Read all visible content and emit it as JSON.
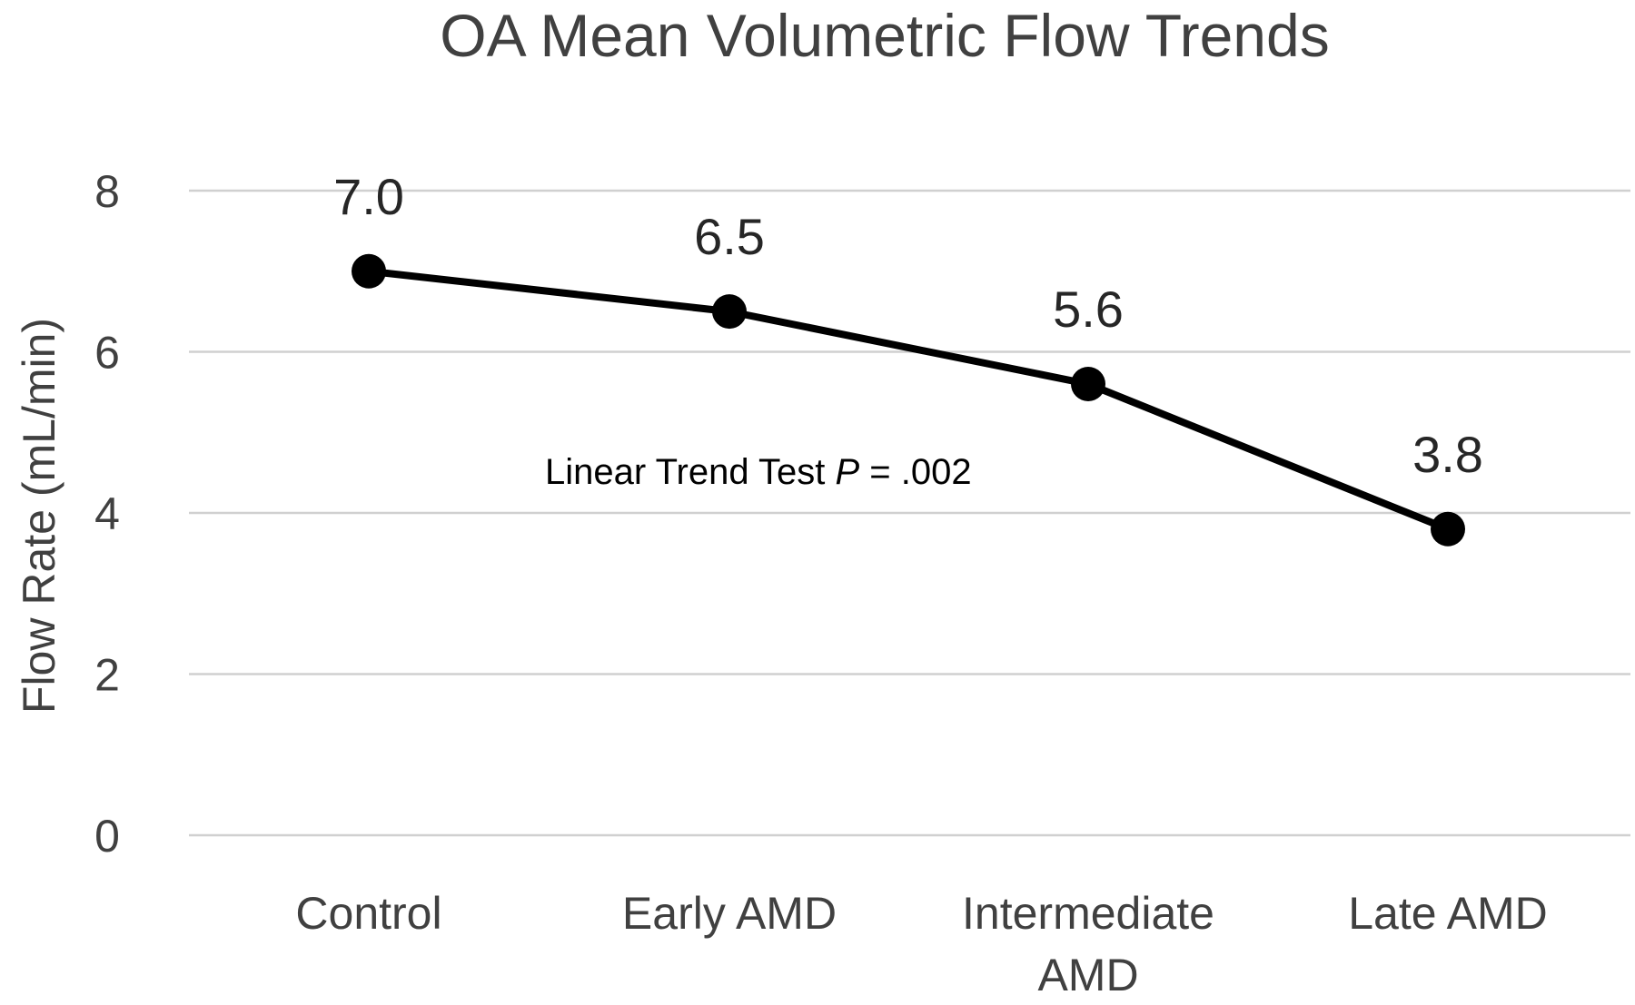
{
  "chart_data": {
    "type": "line",
    "title": "OA Mean Volumetric Flow Trends",
    "xlabel": "",
    "ylabel": "Flow Rate (mL/min)",
    "categories": [
      "Control",
      "Early AMD",
      "Intermediate AMD",
      "Late AMD"
    ],
    "category_lines": [
      [
        "Control"
      ],
      [
        "Early AMD"
      ],
      [
        "Intermediate",
        "AMD"
      ],
      [
        "Late AMD"
      ]
    ],
    "series": [
      {
        "values": [
          7.0,
          6.5,
          5.6,
          3.8
        ]
      }
    ],
    "data_labels": [
      "7.0",
      "6.5",
      "5.6",
      "3.8"
    ],
    "ylim": [
      0,
      8
    ],
    "yticks": [
      0,
      2,
      4,
      6,
      8
    ],
    "grid": true,
    "legend": "none",
    "annotation": {
      "prefix": "Linear Trend Test ",
      "symbol": "P",
      "suffix": " = .002"
    },
    "colors": {
      "line": "#000000",
      "grid": "#d0d0d0",
      "text": "#404040"
    }
  }
}
